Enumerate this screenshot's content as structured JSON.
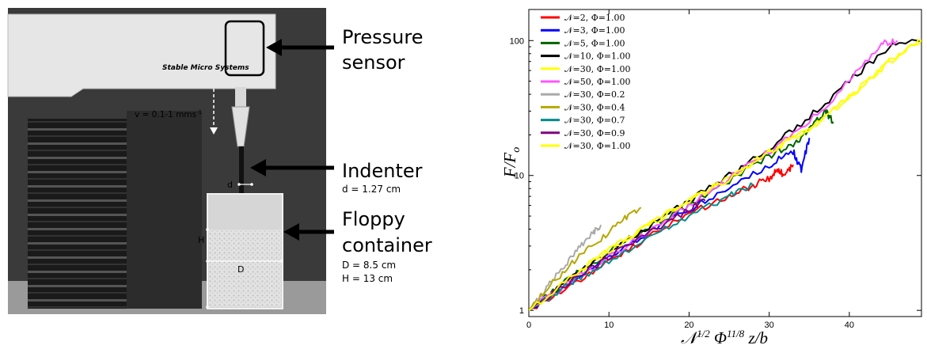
{
  "photo": {
    "brand": "Stable Micro Systems",
    "velocity": "v = 0.1-1 mms",
    "velocity_sup": "-1",
    "dim_d": "d",
    "dim_H": "H",
    "dim_D": "D",
    "labels": {
      "pressure_l1": "Pressure",
      "pressure_l2": "sensor",
      "indenter": "Indenter",
      "indenter_sub": "d = 1.27 cm",
      "floppy_l1": "Floppy",
      "floppy_l2": "container",
      "floppy_sub1": "D = 8.5 cm",
      "floppy_sub2": "H = 13 cm"
    }
  },
  "chart_data": {
    "type": "line",
    "title": "",
    "xlabel": "𝒩1/2 Φ11/8 z/b",
    "ylabel": "F/F0",
    "xlabel_parts": {
      "n": "𝒩",
      "n_exp": "1/2",
      "phi": " Φ",
      "phi_exp": "11/8",
      "rest": " z/b"
    },
    "ylabel_parts": {
      "main": "F/F",
      "sub": "o"
    },
    "xlim": [
      0,
      49
    ],
    "ylim": [
      0.9,
      170
    ],
    "yscale": "log",
    "xticks": [
      0,
      10,
      20,
      30,
      40
    ],
    "yticks": [
      1,
      10,
      100
    ],
    "legend_position": "top-left",
    "series": [
      {
        "name": "𝒩=2, Φ=1.00",
        "color": "#ff0000",
        "x": [
          0,
          5,
          10,
          15,
          20,
          25,
          28,
          30,
          31,
          32,
          33
        ],
        "y": [
          1,
          1.5,
          2.3,
          3.5,
          5.2,
          7,
          8.5,
          9.5,
          11,
          10,
          12
        ]
      },
      {
        "name": "𝒩=3, Φ=1.00",
        "color": "#0000ff",
        "x": [
          0,
          5,
          10,
          15,
          20,
          25,
          30,
          33,
          34,
          35
        ],
        "y": [
          1,
          1.6,
          2.5,
          3.8,
          5.6,
          8,
          12,
          15,
          11,
          19
        ]
      },
      {
        "name": "𝒩=5, Φ=1.00",
        "color": "#006400",
        "x": [
          0,
          5,
          10,
          15,
          20,
          25,
          30,
          33,
          35,
          37,
          38
        ],
        "y": [
          1,
          1.7,
          2.7,
          4.1,
          6,
          9,
          14,
          17,
          22,
          30,
          25
        ]
      },
      {
        "name": "𝒩=10, Φ=1.00",
        "color": "#000000",
        "x": [
          0,
          5,
          10,
          15,
          20,
          25,
          30,
          35,
          40,
          45,
          49
        ],
        "y": [
          1,
          1.7,
          2.7,
          4.2,
          6.5,
          10,
          16,
          27,
          50,
          90,
          100
        ]
      },
      {
        "name": "𝒩=30, Φ=1.00",
        "color": "#ffff00",
        "x": [
          0,
          5,
          10,
          15,
          20,
          25,
          30,
          35,
          40,
          45,
          49
        ],
        "y": [
          1,
          1.7,
          2.8,
          4.3,
          6.5,
          9.5,
          15,
          22,
          38,
          70,
          100
        ]
      },
      {
        "name": "𝒩=50, Φ=1.00",
        "color": "#ff55ff",
        "x": [
          0,
          5,
          10,
          15,
          20,
          25,
          30,
          35,
          40,
          44,
          46
        ],
        "y": [
          1,
          1.6,
          2.5,
          3.8,
          6,
          9.5,
          15,
          25,
          50,
          95,
          100
        ]
      },
      {
        "name": "𝒩=30, Φ=0.2",
        "color": "#aaaaaa",
        "x": [
          0,
          2,
          4,
          6,
          8,
          9
        ],
        "y": [
          1,
          1.4,
          2,
          2.8,
          3.8,
          4.3
        ]
      },
      {
        "name": "𝒩=30, Φ=0.4",
        "color": "#b5a800",
        "x": [
          0,
          3,
          6,
          9,
          12,
          14
        ],
        "y": [
          1,
          1.6,
          2.4,
          3.4,
          4.8,
          5.8
        ]
      },
      {
        "name": "𝒩=30, Φ=0.7",
        "color": "#008b8b",
        "x": [
          0,
          5,
          10,
          15,
          20,
          25,
          28
        ],
        "y": [
          1,
          1.55,
          2.3,
          3.4,
          5,
          7,
          8.5
        ]
      },
      {
        "name": "𝒩=30, Φ=0.9",
        "color": "#800080",
        "x": [
          0,
          5,
          10,
          15,
          20,
          22
        ],
        "y": [
          1,
          1.6,
          2.5,
          3.8,
          5.6,
          6.5
        ]
      },
      {
        "name": "𝒩=30, Φ=1.00",
        "color": "#ffff00",
        "x": [
          0,
          5,
          10,
          15,
          20,
          25,
          30,
          35,
          40,
          45,
          49
        ],
        "y": [
          1,
          1.7,
          2.8,
          4.3,
          6.5,
          9.5,
          15,
          22,
          38,
          70,
          100
        ]
      }
    ]
  }
}
